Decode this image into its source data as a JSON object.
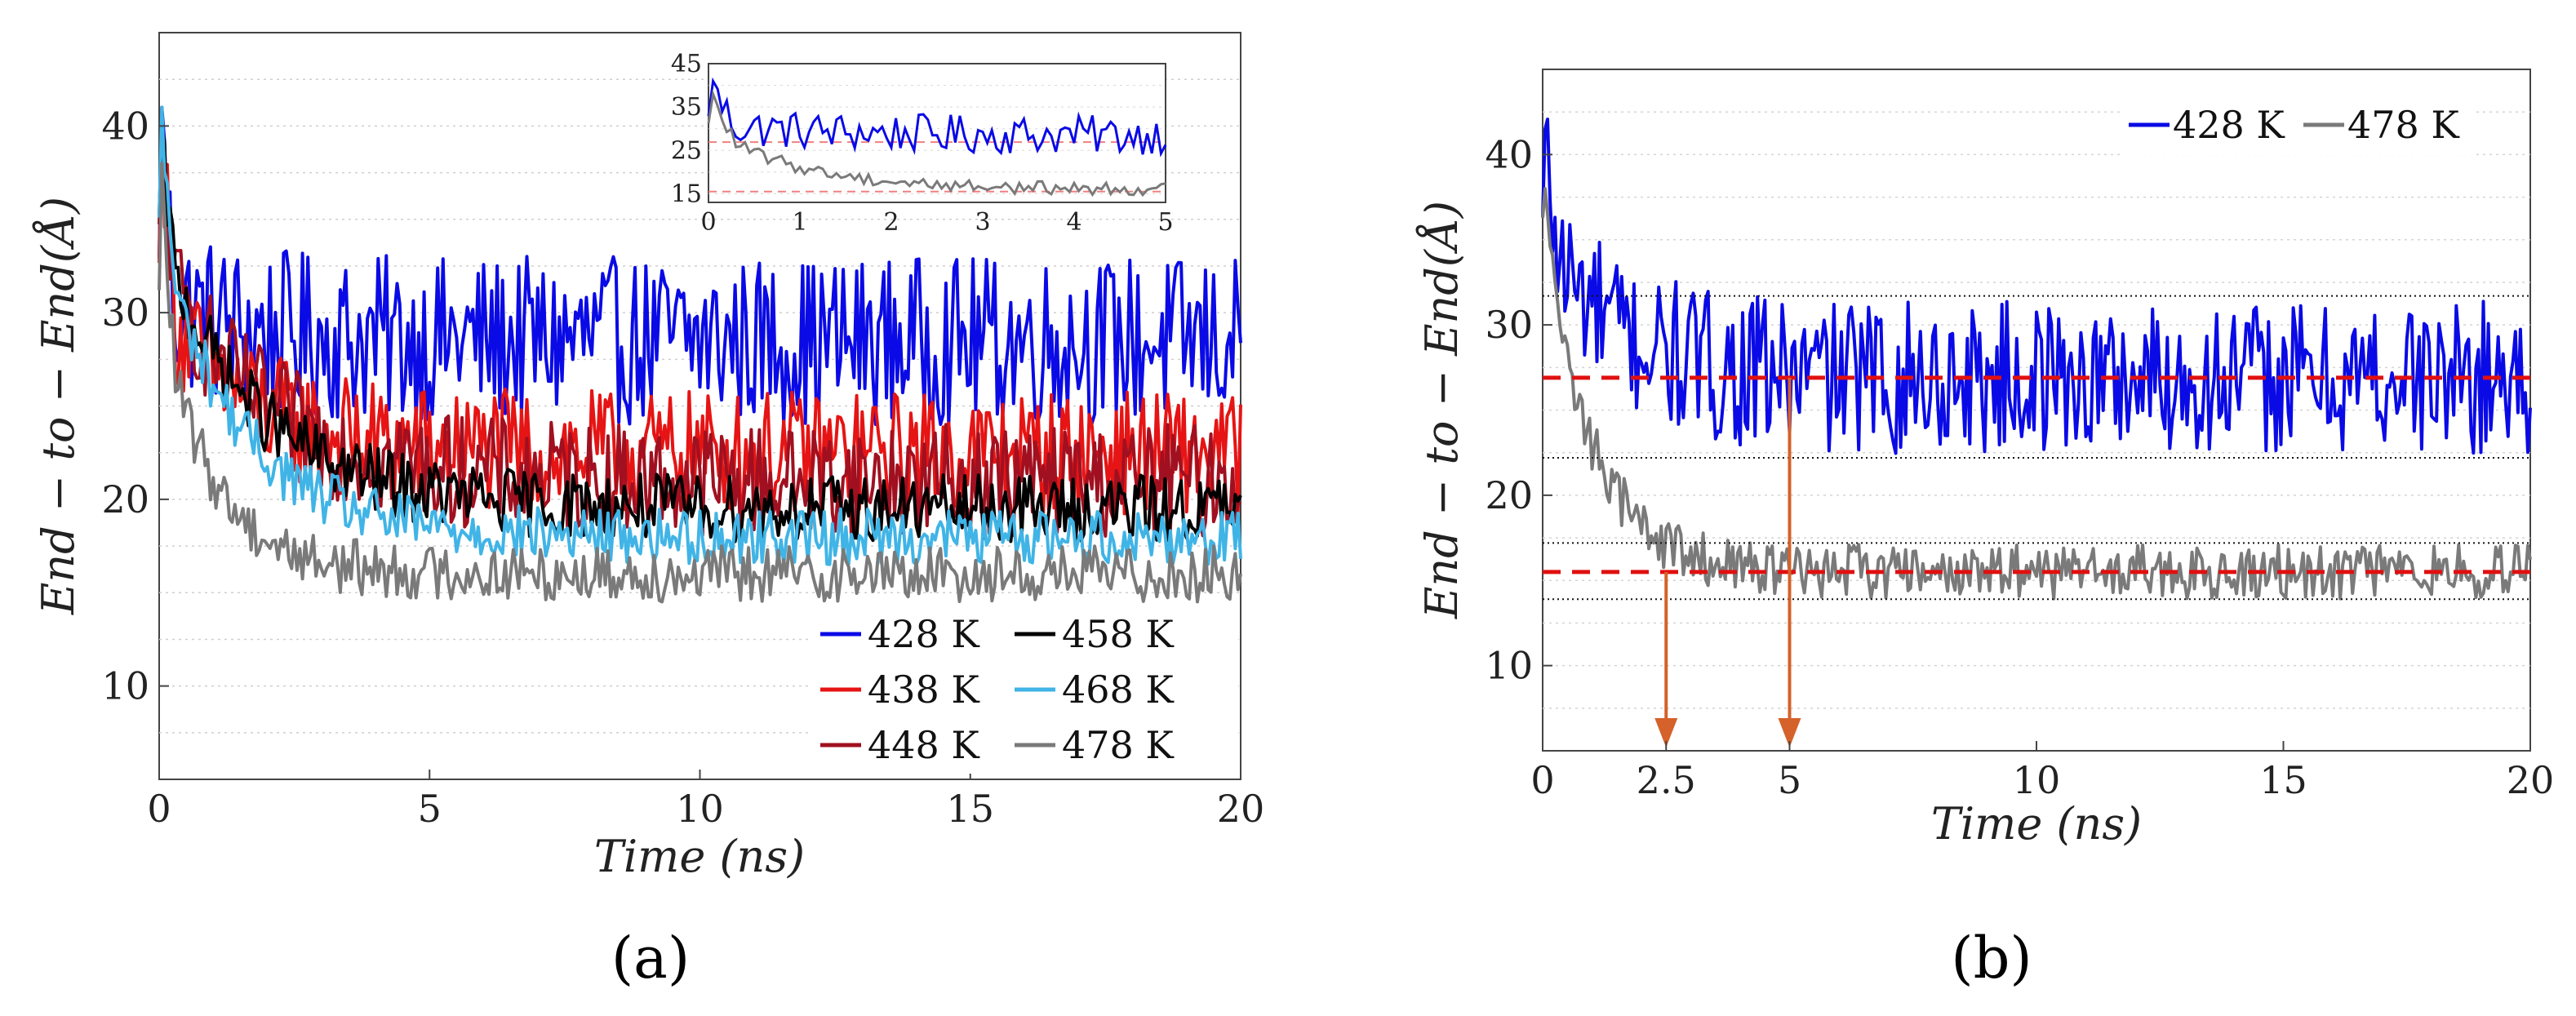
{
  "chart_data": [
    {
      "panel": "(a)",
      "type": "line",
      "xlabel": "Time (ns)",
      "ylabel": "End − to − End(Å)",
      "xlim": [
        0,
        20
      ],
      "ylim": [
        5,
        45
      ],
      "xticks": [
        0,
        5,
        10,
        15,
        20
      ],
      "yticks": [
        10,
        20,
        30,
        40
      ],
      "grid": "horizontal dotted",
      "legend_position": "bottom-right",
      "series": [
        {
          "name": "428 K",
          "label": "428 K",
          "color": "#0a0ae6",
          "start": 31,
          "plateau": 28.5,
          "tau": 1.2,
          "noise": 4.5,
          "peak": 41
        },
        {
          "name": "438 K",
          "label": "438 K",
          "color": "#e61414",
          "start": 31,
          "plateau": 22.5,
          "tau": 1.5,
          "noise": 3.3,
          "peak": 41
        },
        {
          "name": "448 K",
          "label": "448 K",
          "color": "#a01020",
          "start": 33,
          "plateau": 21.0,
          "tau": 1.8,
          "noise": 3.0,
          "peak": 40
        },
        {
          "name": "458 K",
          "label": "458 K",
          "color": "#000000",
          "start": 34,
          "plateau": 19.5,
          "tau": 1.8,
          "noise": 1.8,
          "peak": 40
        },
        {
          "name": "468 K",
          "label": "468 K",
          "color": "#40b4e6",
          "start": 34,
          "plateau": 18.0,
          "tau": 1.5,
          "noise": 1.5,
          "peak": 41
        },
        {
          "name": "478 K",
          "label": "478 K",
          "color": "#7a7a7a",
          "start": 30,
          "plateau": 16.0,
          "tau": 1.0,
          "noise": 1.5,
          "peak": 38
        }
      ],
      "inset": {
        "xlim": [
          0,
          5
        ],
        "ylim": [
          13,
          45
        ],
        "xticks": [
          0,
          1,
          2,
          3,
          4,
          5
        ],
        "yticks": [
          15,
          25,
          35,
          45
        ],
        "hlines": [
          26.9,
          15.5
        ],
        "series": [
          "428 K",
          "478 K"
        ]
      }
    },
    {
      "panel": "(b)",
      "type": "line",
      "xlabel": "Time (ns)",
      "ylabel": "End − to − End(Å)",
      "xlim": [
        0,
        20
      ],
      "ylim": [
        5,
        45
      ],
      "xticks": [
        0,
        2.5,
        5,
        10,
        15,
        20
      ],
      "xtick_labels": [
        "0",
        "2.5",
        "5",
        "10",
        "15",
        "20"
      ],
      "yticks": [
        10,
        20,
        30,
        40
      ],
      "grid": "horizontal dotted",
      "legend_position": "top-right",
      "series": [
        {
          "name": "428 K",
          "label": "428 K",
          "color": "#0a0ae6",
          "start": 36,
          "plateau": 26.9,
          "tau": 1.3,
          "noise": 4.5,
          "peak": 41.5
        },
        {
          "name": "478 K",
          "label": "478 K",
          "color": "#7a7a7a",
          "start": 36,
          "plateau": 15.5,
          "tau": 1.0,
          "noise": 1.6,
          "peak": 38
        }
      ],
      "mean_lines": [
        26.9,
        15.5
      ],
      "bound_lines": [
        31.7,
        22.2,
        17.2,
        13.9
      ],
      "annotation_arrows": [
        {
          "x": 2.5,
          "from_y": 15.5,
          "color": "#d4622a"
        },
        {
          "x": 5,
          "from_y": 26.9,
          "color": "#d4622a"
        }
      ]
    }
  ],
  "panel_labels": {
    "a": "(a)",
    "b": "(b)"
  }
}
